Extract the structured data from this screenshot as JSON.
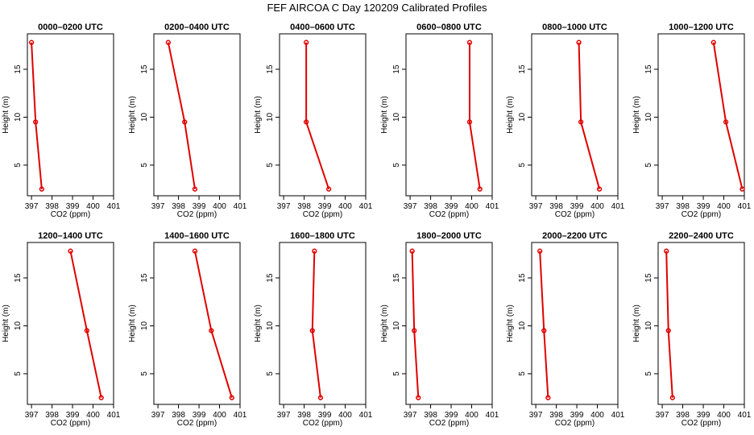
{
  "title": "FEF AIRCOA C  Day 120209  Calibrated Profiles",
  "chart_data": {
    "type": "line",
    "layout_rows": 2,
    "layout_cols": 6,
    "xlabel": "CO2 (ppm)",
    "ylabel": "Height (m)",
    "xlim": [
      396.8,
      401
    ],
    "ylim": [
      1.8,
      18.7
    ],
    "xticks": [
      397,
      398,
      399,
      400,
      401
    ],
    "yticks": [
      5,
      10,
      15
    ],
    "heights": [
      2.5,
      9.5,
      17.8
    ],
    "panels": [
      {
        "title": "0000–0200 UTC",
        "co2": [
          397.5,
          397.2,
          397.0
        ]
      },
      {
        "title": "0200–0400 UTC",
        "co2": [
          398.8,
          398.3,
          397.5
        ]
      },
      {
        "title": "0400–0600 UTC",
        "co2": [
          399.2,
          398.1,
          398.1
        ]
      },
      {
        "title": "0600–0800 UTC",
        "co2": [
          400.4,
          399.9,
          399.9
        ]
      },
      {
        "title": "0800–1000 UTC",
        "co2": [
          400.1,
          399.2,
          399.1
        ]
      },
      {
        "title": "1000–1200 UTC",
        "co2": [
          400.9,
          400.1,
          399.5
        ]
      },
      {
        "title": "1200–1400 UTC",
        "co2": [
          400.4,
          399.7,
          398.9
        ]
      },
      {
        "title": "1400–1600 UTC",
        "co2": [
          400.6,
          399.6,
          398.8
        ]
      },
      {
        "title": "1600–1800 UTC",
        "co2": [
          398.8,
          398.4,
          398.5
        ]
      },
      {
        "title": "1800–2000 UTC",
        "co2": [
          397.4,
          397.2,
          397.1
        ]
      },
      {
        "title": "2000–2200 UTC",
        "co2": [
          397.6,
          397.4,
          397.2
        ]
      },
      {
        "title": "2200–2400 UTC",
        "co2": [
          397.5,
          397.3,
          397.2
        ]
      }
    ]
  }
}
